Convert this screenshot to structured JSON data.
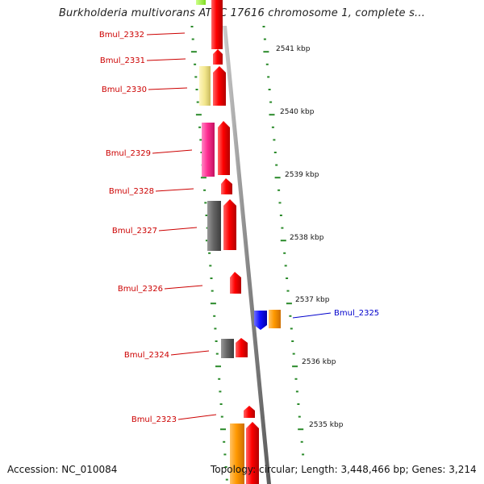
{
  "title": "Burkholderia multivorans ATCC 17616 chromosome 1, complete s...",
  "accession": "Accession: NC_010084",
  "summary": "Topology: circular; Length: 3,448,466 bp; Genes: 3,214",
  "colors": {
    "red": "#ff1a1a",
    "orange": "#ff9900",
    "pale_yellow": "#f2e68c",
    "magenta": "#ff3399",
    "gray": "#666666",
    "blue": "#1a1aff",
    "lime": "#99ff33",
    "label_red": "#cc0000",
    "label_blue": "#0000cc",
    "tick_green": "#2a8a2a",
    "backbone": "#8a8a8a"
  },
  "gene_labels": [
    {
      "text": "Bmul_2332",
      "strand": "forward"
    },
    {
      "text": "Bmul_2331",
      "strand": "forward"
    },
    {
      "text": "Bmul_2330",
      "strand": "forward"
    },
    {
      "text": "Bmul_2329",
      "strand": "forward"
    },
    {
      "text": "Bmul_2328",
      "strand": "forward"
    },
    {
      "text": "Bmul_2327",
      "strand": "forward"
    },
    {
      "text": "Bmul_2326",
      "strand": "forward"
    },
    {
      "text": "Bmul_2325",
      "strand": "reverse"
    },
    {
      "text": "Bmul_2324",
      "strand": "forward"
    },
    {
      "text": "Bmul_2323",
      "strand": "forward"
    }
  ],
  "scale_labels": [
    "2541 kbp",
    "2540 kbp",
    "2539 kbp",
    "2538 kbp",
    "2537 kbp",
    "2536 kbp",
    "2535 kbp"
  ]
}
